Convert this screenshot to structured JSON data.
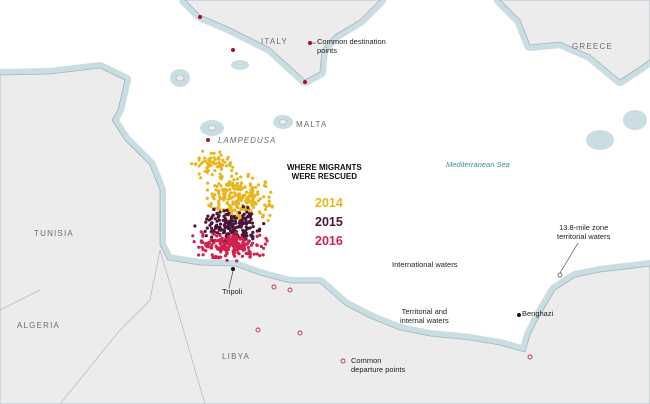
{
  "colors": {
    "land": "#ececec",
    "sea": "#ffffff",
    "territorial": "#c9dde3",
    "coastline": "#9bb5bd",
    "y2014": "#e9b51e",
    "y2015": "#4a1538",
    "y2016": "#d2204f",
    "destination_point": "#a8102c",
    "departure_ring": "#c0304a"
  },
  "labels": {
    "italy": "ITALY",
    "greece": "GREECE",
    "tunisia": "TUNISIA",
    "algeria": "ALGERIA",
    "libya": "LIBYA",
    "lampedusa": "LAMPEDUSA",
    "malta": "MALTA",
    "mediterranean": "Mediterranean Sea",
    "tripoli": "Tripoli",
    "benghazi": "Benghazi",
    "international_waters": "International waters",
    "territorial_internal": [
      "Territorial and",
      "internal waters"
    ],
    "zone_note": [
      "13.8-mile zone",
      "territorial waters"
    ],
    "common_destination": [
      "Common destination",
      "points"
    ],
    "common_departure": [
      "Common",
      "departure points"
    ]
  },
  "legend": {
    "title": [
      "WHERE MIGRANTS",
      "WERE RESCUED"
    ],
    "years": [
      "2014",
      "2015",
      "2016"
    ]
  }
}
